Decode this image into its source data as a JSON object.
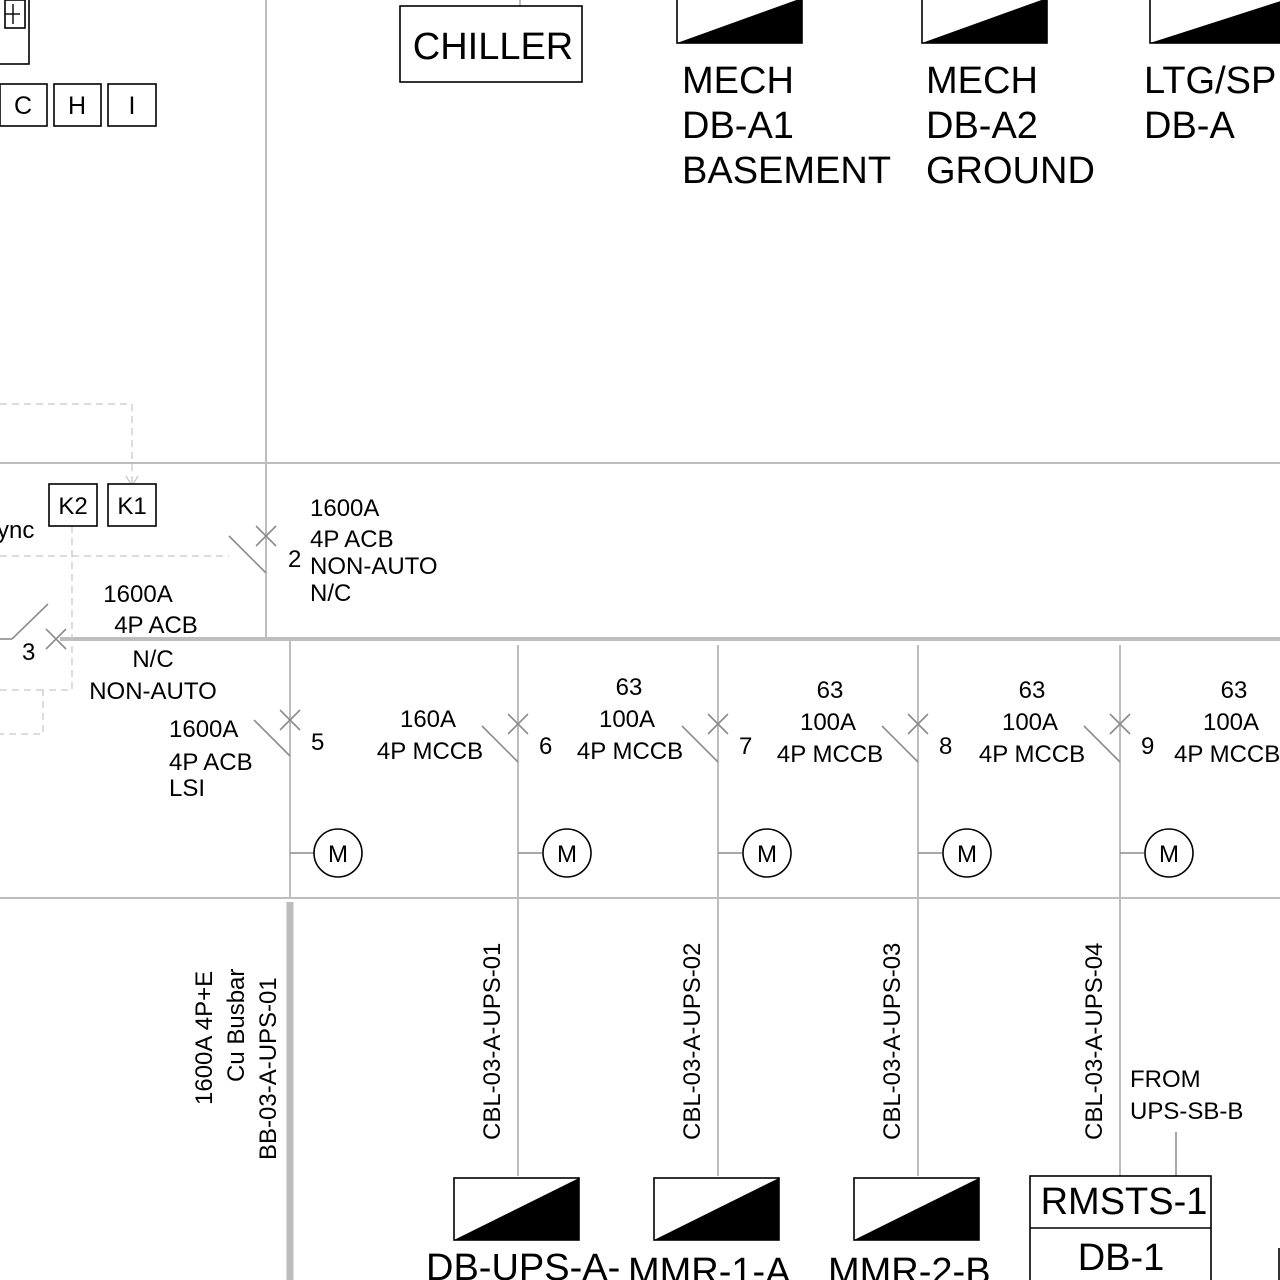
{
  "top": {
    "chiller": "CHILLER",
    "boards": [
      {
        "lines": [
          "MECH",
          "DB-A1",
          "BASEMENT"
        ]
      },
      {
        "lines": [
          "MECH",
          "DB-A2",
          "GROUND"
        ]
      },
      {
        "lines": [
          "LTG/SP",
          "DB-A"
        ]
      }
    ],
    "relay_boxes": [
      "C",
      "H",
      "I"
    ]
  },
  "controls": {
    "k2": "K2",
    "k1": "K1",
    "sync_fragment": "ync"
  },
  "main_breakers": [
    {
      "number": "2",
      "lines": [
        "1600A",
        "4P ACB",
        "NON-AUTO",
        "N/C"
      ]
    },
    {
      "number": "3",
      "lines": [
        "1600A",
        "4P ACB",
        "N/C",
        "NON-AUTO"
      ]
    }
  ],
  "feeders": [
    {
      "number": "5",
      "lines": [
        "1600A",
        "4P ACB",
        "LSI"
      ],
      "meter": "M",
      "cable_lines": [
        "1600A 4P+E",
        "Cu Busbar",
        "BB-03-A-UPS-01"
      ]
    },
    {
      "number": "6",
      "lines": [
        "160A",
        "4P MCCB"
      ],
      "meter": "M",
      "cable": "CBL-03-A-UPS-01",
      "board": "DB-UPS-A-"
    },
    {
      "number": "7",
      "lines": [
        "63",
        "100A",
        "4P MCCB"
      ],
      "meter": "M",
      "cable": "CBL-03-A-UPS-02",
      "board": "MMR-1-A"
    },
    {
      "number": "8",
      "lines": [
        "63",
        "100A",
        "4P MCCB"
      ],
      "meter": "M",
      "cable": "CBL-03-A-UPS-03",
      "board": "MMR-2-B"
    },
    {
      "number": "9",
      "lines": [
        "63",
        "100A",
        "4P MCCB"
      ],
      "meter": "M",
      "cable": "CBL-03-A-UPS-04"
    },
    {
      "lines": [
        "63",
        "100A",
        "4P MCCB"
      ]
    }
  ],
  "rmsts": {
    "title": "RMSTS-1",
    "board": "DB-1",
    "source_lines": [
      "FROM",
      "UPS-SB-B"
    ]
  },
  "colors": {
    "ink": "#000000",
    "wire": "#bdbdbd",
    "page": "#ffffff"
  }
}
